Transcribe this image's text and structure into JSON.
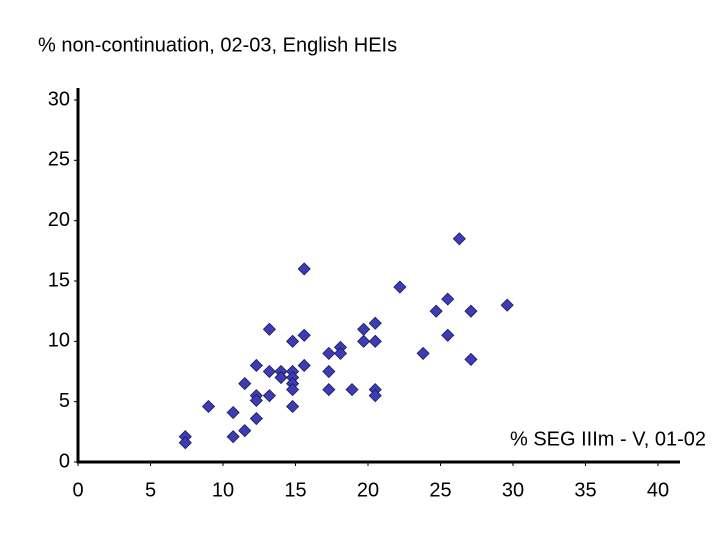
{
  "chart_data": {
    "type": "scatter",
    "title": "% non-continuation, 02-03, English HEIs",
    "x_label": "% SEG IIIm - V, 01-02",
    "color": "#3c3cb4",
    "x": [
      7.4,
      7.4,
      9.0,
      10.7,
      10.7,
      11.5,
      11.5,
      12.3,
      12.3,
      12.3,
      12.3,
      13.2,
      13.2,
      13.2,
      14.0,
      14.0,
      14.8,
      14.8,
      14.8,
      14.8,
      14.8,
      14.8,
      15.6,
      15.6,
      15.6,
      17.3,
      17.3,
      17.3,
      18.1,
      18.1,
      18.9,
      19.7,
      19.7,
      20.5,
      20.5,
      20.5,
      20.5,
      22.2,
      23.8,
      24.7,
      25.5,
      25.5,
      26.3,
      27.1,
      27.1,
      29.6
    ],
    "values": [
      2.1,
      1.6,
      4.6,
      4.1,
      2.1,
      6.5,
      2.6,
      8.0,
      5.5,
      5.1,
      3.6,
      11.0,
      7.5,
      5.5,
      7.5,
      7.0,
      10.0,
      7.5,
      7.0,
      6.5,
      6.0,
      4.6,
      16.0,
      10.5,
      8.0,
      9.0,
      7.5,
      6.0,
      9.5,
      9.0,
      6.0,
      11.0,
      10.0,
      11.5,
      10.0,
      6.0,
      5.5,
      14.5,
      9.0,
      12.5,
      13.5,
      10.5,
      18.5,
      12.5,
      8.5,
      13.0
    ],
    "xlim": [
      0,
      40
    ],
    "xticks": [
      0,
      5,
      10,
      15,
      20,
      25,
      30,
      35,
      40
    ],
    "ylim": [
      0,
      30
    ],
    "yticks": [
      0,
      5,
      10,
      15,
      20,
      25,
      30
    ],
    "grid": false
  }
}
